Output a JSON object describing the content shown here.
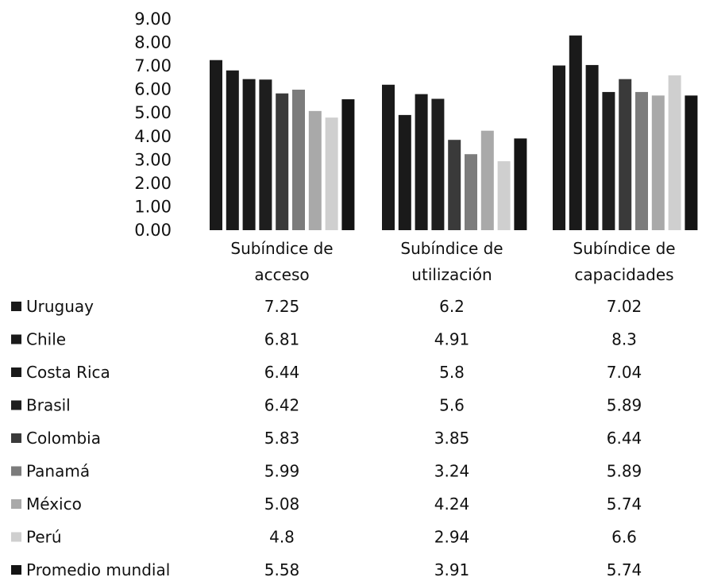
{
  "chart_data": {
    "type": "bar",
    "categories": [
      [
        "Subíndice de",
        "acceso"
      ],
      [
        "Subíndice de",
        "utilización"
      ],
      [
        "Subíndice de",
        "capacidades"
      ]
    ],
    "yticks": [
      "9.00",
      "8.00",
      "7.00",
      "6.00",
      "5.00",
      "4.00",
      "3.00",
      "2.00",
      "1.00",
      "0.00"
    ],
    "ylim": [
      0,
      9
    ],
    "grid": false,
    "legend": "data-table",
    "series": [
      {
        "name": "Uruguay",
        "color": "#1a1a1a",
        "values": [
          7.25,
          6.2,
          7.02
        ],
        "labels": [
          "7.25",
          "6.2",
          "7.02"
        ]
      },
      {
        "name": "Chile",
        "color": "#1a1a1a",
        "values": [
          6.81,
          4.91,
          8.3
        ],
        "labels": [
          "6.81",
          "4.91",
          "8.3"
        ]
      },
      {
        "name": "Costa Rica",
        "color": "#1a1a1a",
        "values": [
          6.44,
          5.8,
          7.04
        ],
        "labels": [
          "6.44",
          "5.8",
          "7.04"
        ]
      },
      {
        "name": "Brasil",
        "color": "#1e1e1e",
        "values": [
          6.42,
          5.6,
          5.89
        ],
        "labels": [
          "6.42",
          "5.6",
          "5.89"
        ]
      },
      {
        "name": "Colombia",
        "color": "#3a3a3a",
        "values": [
          5.83,
          3.85,
          6.44
        ],
        "labels": [
          "5.83",
          "3.85",
          "6.44"
        ]
      },
      {
        "name": "Panamá",
        "color": "#7c7c7c",
        "values": [
          5.99,
          3.24,
          5.89
        ],
        "labels": [
          "5.99",
          "3.24",
          "5.89"
        ]
      },
      {
        "name": "México",
        "color": "#a9a9a9",
        "values": [
          5.08,
          4.24,
          5.74
        ],
        "labels": [
          "5.08",
          "4.24",
          "5.74"
        ]
      },
      {
        "name": "Perú",
        "color": "#cfcfcf",
        "values": [
          4.8,
          2.94,
          6.6
        ],
        "labels": [
          "4.8",
          "2.94",
          "6.6"
        ]
      },
      {
        "name": "Promedio mundial",
        "color": "#141414",
        "values": [
          5.58,
          3.91,
          5.74
        ],
        "labels": [
          "5.58",
          "3.91",
          "5.74"
        ]
      }
    ]
  }
}
